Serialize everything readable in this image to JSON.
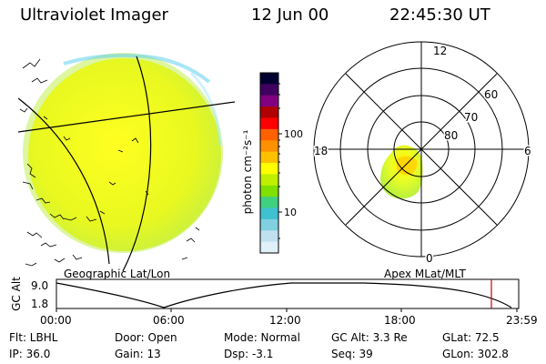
{
  "header": {
    "instrument": "Ultraviolet Imager",
    "date": "12 Jun 00",
    "time": "22:45:30 UT"
  },
  "colorbar": {
    "label": "photon cm⁻²s⁻¹",
    "ticks": [
      "100",
      "10"
    ],
    "colors": [
      "#000030",
      "#400060",
      "#800080",
      "#b00000",
      "#ff0000",
      "#ff6000",
      "#ff9000",
      "#ffc000",
      "#ffff00",
      "#c0f000",
      "#80e000",
      "#40d080",
      "#40c0d0",
      "#80d0e0",
      "#c0e0f0",
      "#e0f0f8"
    ]
  },
  "panels": {
    "left_label": "Geographic Lat/Lon",
    "right_label": "Apex MLat/MLT"
  },
  "polar_plot": {
    "mlt_labels": [
      "12",
      "18",
      "6",
      "0"
    ],
    "lat_labels": [
      "60",
      "70",
      "80"
    ]
  },
  "timeline": {
    "ylabel": "GC Alt",
    "y_ticks": [
      "9.0",
      "1.8"
    ],
    "x_ticks": [
      "00:00",
      "06:00",
      "12:00",
      "18:00",
      "23:59"
    ],
    "marker_color": "#cc0000"
  },
  "footer": {
    "row1": {
      "flt": "Flt: LBHL",
      "door": "Door: Open",
      "mode": "Mode: Normal",
      "gc_alt": "GC Alt: 3.3 Re",
      "glat": "GLat:  72.5"
    },
    "row2": {
      "ip": "IP: 36.0",
      "gain": "Gain: 13",
      "dsp": "Dsp:   -3.1",
      "seq": "Seq: 39",
      "glon": "GLon: 302.8"
    }
  }
}
